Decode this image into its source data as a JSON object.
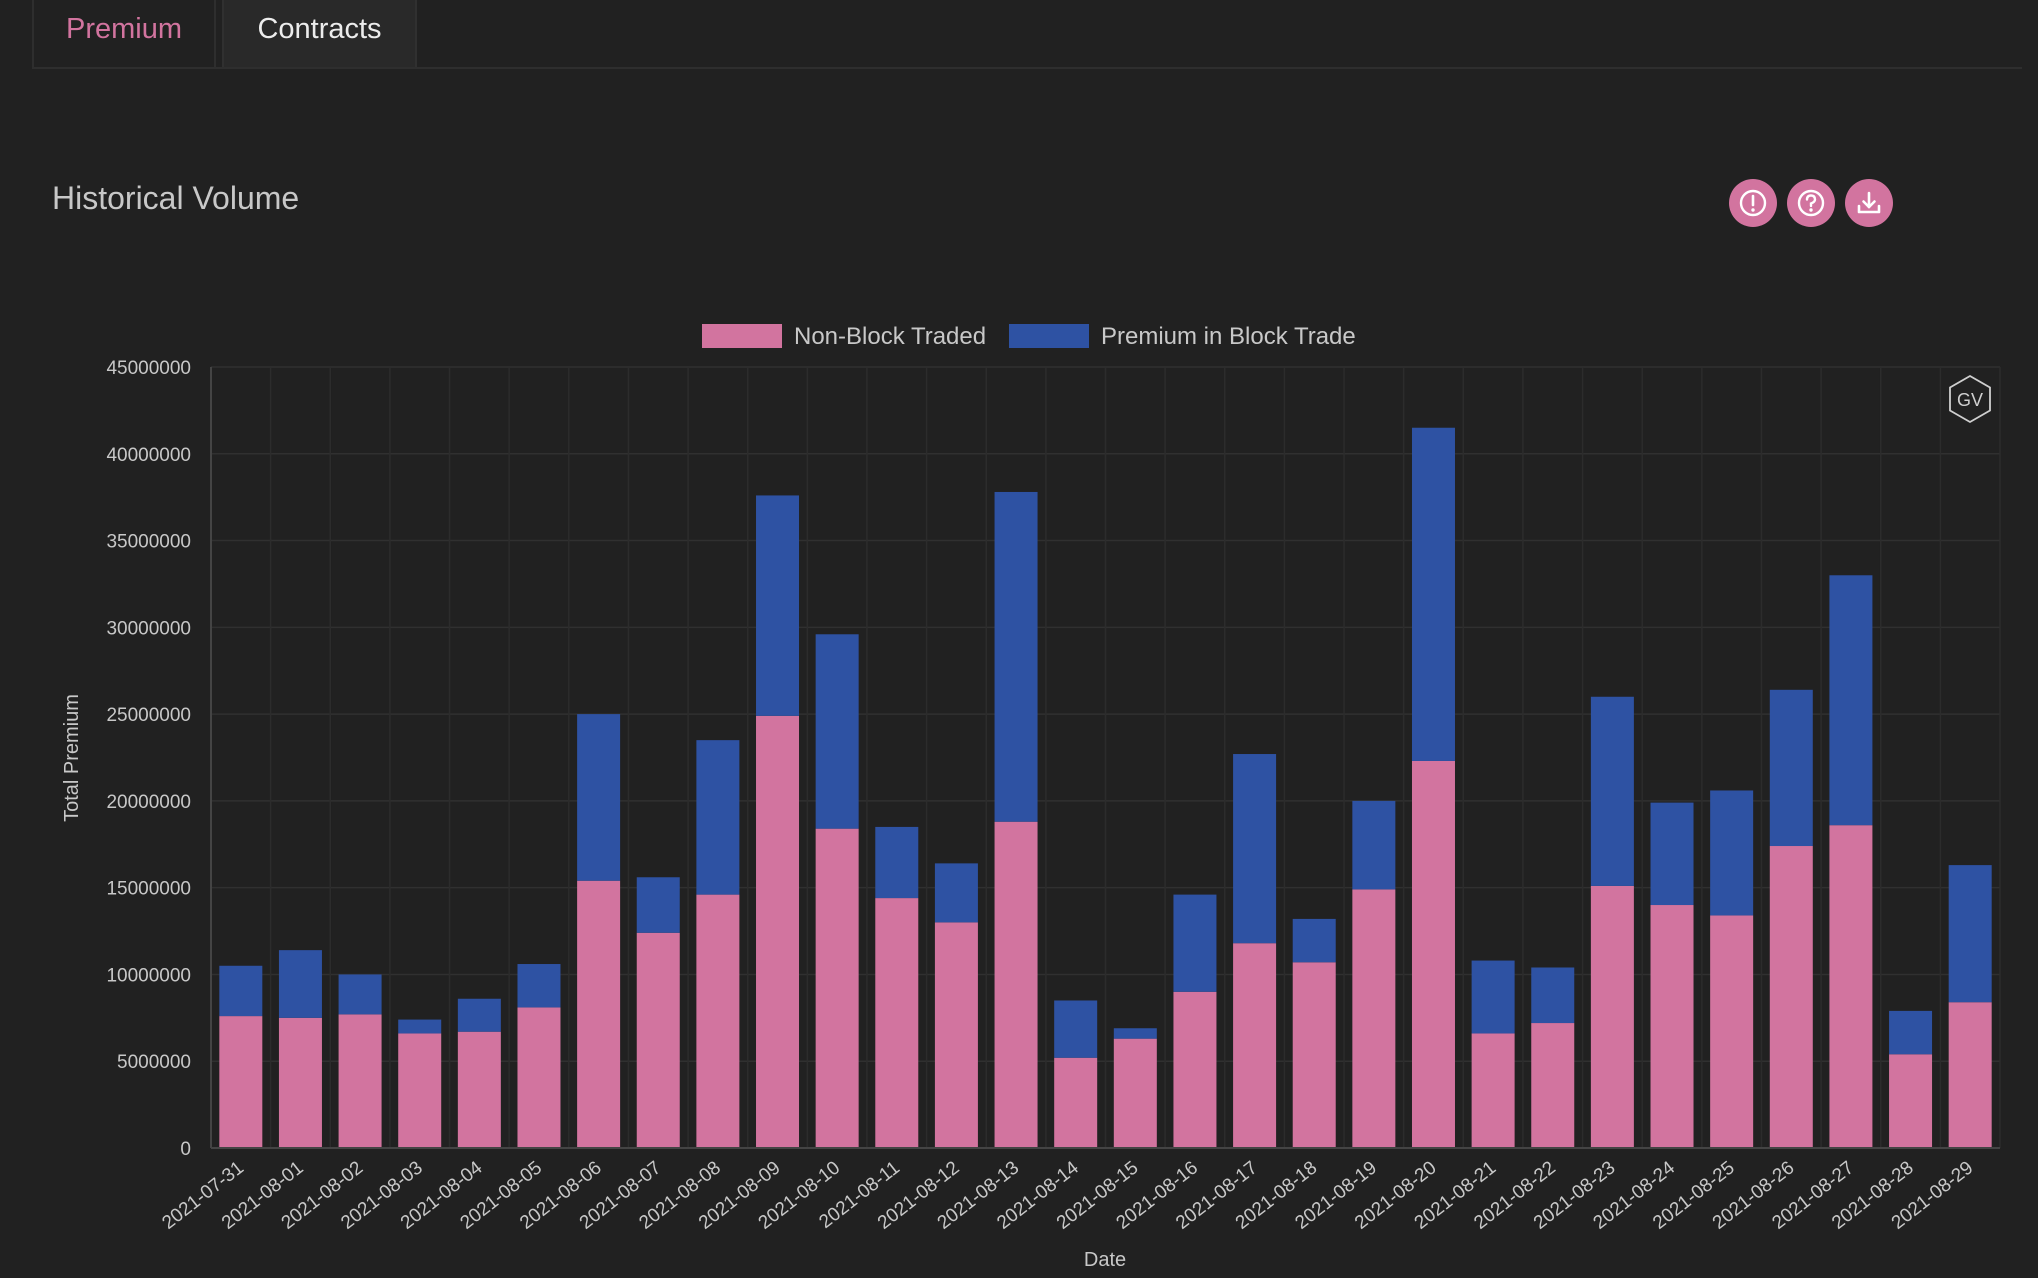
{
  "tabs": [
    {
      "label": "Premium",
      "active": true
    },
    {
      "label": "Contracts",
      "active": false
    }
  ],
  "header": {
    "title": "Historical Volume",
    "icons": [
      "alert-icon",
      "help-icon",
      "download-icon"
    ]
  },
  "watermark": "GV",
  "colors": {
    "background": "#212121",
    "accent": "#d2749f",
    "series_non_block": "#d2749f",
    "series_block": "#2e52a3"
  },
  "chart_data": {
    "type": "bar",
    "stacked": true,
    "title": "",
    "xlabel": "Date",
    "ylabel": "Total Premium",
    "ylim": [
      0,
      45000000
    ],
    "y_ticks": [
      0,
      5000000,
      10000000,
      15000000,
      20000000,
      25000000,
      30000000,
      35000000,
      40000000,
      45000000
    ],
    "grid": true,
    "legend_position": "top-center",
    "categories": [
      "2021-07-31",
      "2021-08-01",
      "2021-08-02",
      "2021-08-03",
      "2021-08-04",
      "2021-08-05",
      "2021-08-06",
      "2021-08-07",
      "2021-08-08",
      "2021-08-09",
      "2021-08-10",
      "2021-08-11",
      "2021-08-12",
      "2021-08-13",
      "2021-08-14",
      "2021-08-15",
      "2021-08-16",
      "2021-08-17",
      "2021-08-18",
      "2021-08-19",
      "2021-08-20",
      "2021-08-21",
      "2021-08-22",
      "2021-08-23",
      "2021-08-24",
      "2021-08-25",
      "2021-08-26",
      "2021-08-27",
      "2021-08-28",
      "2021-08-29"
    ],
    "series": [
      {
        "name": "Non-Block Traded",
        "color": "#d2749f",
        "values": [
          7600000,
          7500000,
          7700000,
          6600000,
          6700000,
          8100000,
          15400000,
          12400000,
          14600000,
          24900000,
          18400000,
          14400000,
          13000000,
          18800000,
          5200000,
          6300000,
          9000000,
          11800000,
          10700000,
          14900000,
          22300000,
          6600000,
          7200000,
          15100000,
          14000000,
          13400000,
          17400000,
          18600000,
          5400000,
          8400000
        ]
      },
      {
        "name": "Premium in Block Trade",
        "color": "#2e52a3",
        "values": [
          2900000,
          3900000,
          2300000,
          800000,
          1900000,
          2500000,
          9600000,
          3200000,
          8900000,
          12700000,
          11200000,
          4100000,
          3400000,
          19000000,
          3300000,
          600000,
          5600000,
          10900000,
          2500000,
          5100000,
          19200000,
          4200000,
          3200000,
          10900000,
          5900000,
          7200000,
          9000000,
          14400000,
          2500000,
          7900000
        ]
      }
    ]
  }
}
